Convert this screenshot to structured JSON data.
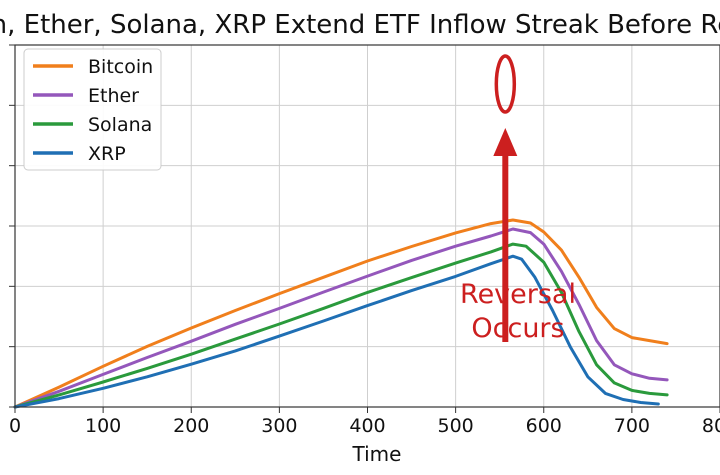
{
  "chart_data": {
    "type": "line",
    "title": "Bitcoin, Ether, Solana, XRP Extend ETF Inflow Streak Before Reversal",
    "xlabel": "Time",
    "ylabel": "",
    "xlim": [
      0,
      800
    ],
    "ylim": [
      0,
      1.2
    ],
    "x_ticks": [
      0,
      100,
      200,
      300,
      400,
      500,
      600,
      700,
      800
    ],
    "y_tick_count": 7,
    "grid": true,
    "legend_position": "top-left",
    "annotation": {
      "text_line1": "Reversal",
      "text_line2": "Occurs",
      "color": "#cc1f1f",
      "highlight_x": 570
    },
    "series": [
      {
        "name": "Bitcoin",
        "color": "#f07f1c",
        "x": [
          0,
          50,
          100,
          150,
          200,
          250,
          300,
          350,
          400,
          450,
          500,
          540,
          565,
          585,
          600,
          620,
          640,
          660,
          680,
          700,
          720,
          740
        ],
        "y": [
          0,
          0.066,
          0.135,
          0.201,
          0.262,
          0.32,
          0.376,
          0.43,
          0.484,
          0.532,
          0.577,
          0.608,
          0.62,
          0.61,
          0.58,
          0.52,
          0.43,
          0.33,
          0.26,
          0.23,
          0.22,
          0.21
        ]
      },
      {
        "name": "Ether",
        "color": "#9457bb",
        "x": [
          0,
          50,
          100,
          150,
          200,
          250,
          300,
          350,
          400,
          450,
          500,
          540,
          565,
          585,
          600,
          620,
          640,
          660,
          680,
          700,
          720,
          740
        ],
        "y": [
          0,
          0.052,
          0.108,
          0.164,
          0.218,
          0.274,
          0.327,
          0.381,
          0.434,
          0.486,
          0.533,
          0.567,
          0.59,
          0.578,
          0.54,
          0.45,
          0.34,
          0.22,
          0.14,
          0.11,
          0.095,
          0.09
        ]
      },
      {
        "name": "Solana",
        "color": "#2a9a3c",
        "x": [
          0,
          50,
          100,
          150,
          200,
          250,
          300,
          350,
          400,
          450,
          500,
          540,
          565,
          580,
          600,
          620,
          640,
          660,
          680,
          700,
          720,
          740
        ],
        "y": [
          0,
          0.04,
          0.083,
          0.128,
          0.175,
          0.225,
          0.275,
          0.327,
          0.38,
          0.429,
          0.477,
          0.514,
          0.54,
          0.533,
          0.48,
          0.38,
          0.25,
          0.14,
          0.08,
          0.055,
          0.045,
          0.04
        ]
      },
      {
        "name": "XRP",
        "color": "#1f6fb4",
        "x": [
          0,
          50,
          100,
          150,
          200,
          250,
          300,
          350,
          400,
          450,
          500,
          540,
          565,
          575,
          590,
          610,
          630,
          650,
          670,
          690,
          710,
          730
        ],
        "y": [
          0,
          0.028,
          0.062,
          0.1,
          0.142,
          0.186,
          0.235,
          0.285,
          0.336,
          0.386,
          0.433,
          0.475,
          0.5,
          0.49,
          0.43,
          0.32,
          0.2,
          0.1,
          0.045,
          0.025,
          0.015,
          0.01
        ]
      }
    ]
  }
}
